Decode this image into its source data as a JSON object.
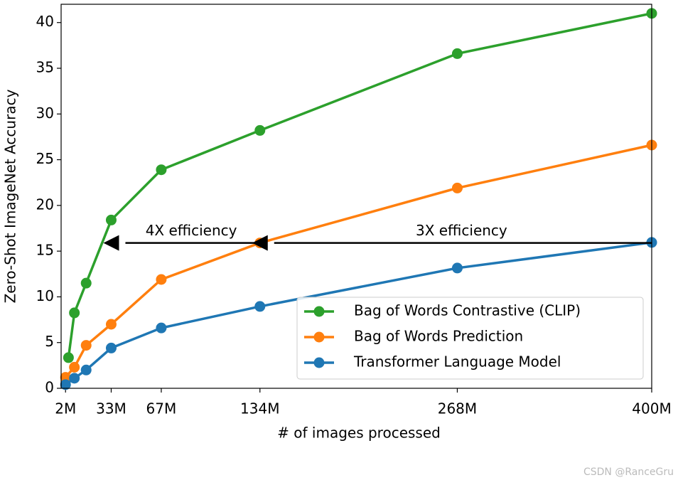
{
  "chart_data": {
    "type": "line",
    "xlabel": "# of images processed",
    "ylabel": "Zero-Shot ImageNet Accuracy",
    "xlim": [
      -1,
      400
    ],
    "ylim": [
      0,
      42
    ],
    "xticks": [
      {
        "value": 2,
        "label": "2M"
      },
      {
        "value": 33,
        "label": "33M"
      },
      {
        "value": 67,
        "label": "67M"
      },
      {
        "value": 134,
        "label": "134M"
      },
      {
        "value": 268,
        "label": "268M"
      },
      {
        "value": 400,
        "label": "400M"
      }
    ],
    "yticks": [
      0,
      5,
      10,
      15,
      20,
      25,
      30,
      35,
      40
    ],
    "legend": "lower right",
    "series": [
      {
        "name": "Bag of Words Contrastive (CLIP)",
        "color": "#2ca02c",
        "x": [
          4,
          8,
          16,
          33,
          67,
          134,
          268,
          400
        ],
        "values": [
          3.35,
          8.25,
          11.5,
          18.4,
          23.9,
          28.2,
          36.6,
          41.0
        ]
      },
      {
        "name": "Bag of Words Prediction",
        "color": "#ff7f0e",
        "x": [
          2,
          8,
          16,
          33,
          67,
          134,
          268,
          400
        ],
        "values": [
          1.2,
          2.3,
          4.7,
          7.0,
          11.9,
          15.9,
          21.9,
          26.6
        ]
      },
      {
        "name": "Transformer Language Model",
        "color": "#1f77b4",
        "x": [
          2,
          8,
          16,
          33,
          67,
          134,
          268,
          400
        ],
        "values": [
          0.4,
          1.1,
          2.0,
          4.4,
          6.6,
          8.95,
          13.15,
          15.95
        ]
      }
    ],
    "annotations": [
      {
        "text": "4X efficiency",
        "x_from": 134,
        "x_to": 33,
        "y": 15.9
      },
      {
        "text": "3X efficiency",
        "x_from": 400,
        "x_to": 134,
        "y": 15.9
      }
    ],
    "watermark": "CSDN @RanceGru"
  }
}
